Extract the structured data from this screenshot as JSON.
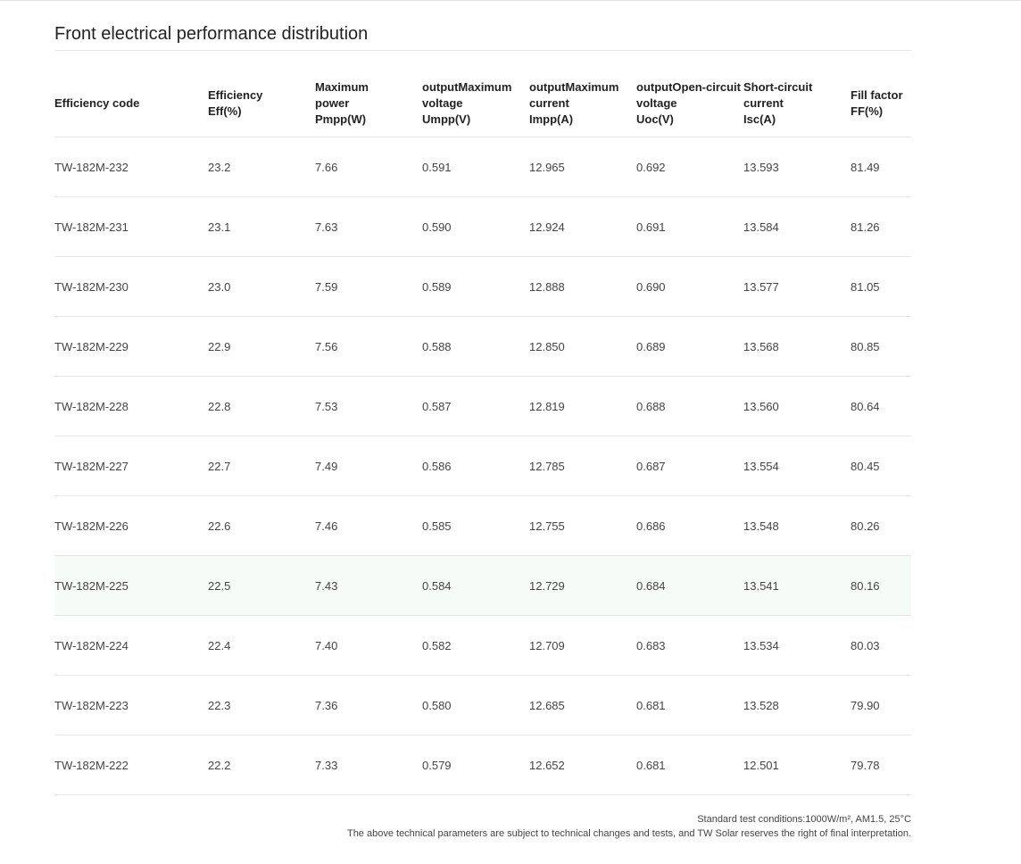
{
  "section_title": "Front electrical performance distribution",
  "table": {
    "headers": [
      [
        "Efficiency code"
      ],
      [
        "Efficiency",
        "Eff(%)"
      ],
      [
        "Maximum",
        "power",
        "Pmpp(W)"
      ],
      [
        "outputMaximum",
        "voltage",
        "Umpp(V)"
      ],
      [
        "outputMaximum",
        "current",
        "Impp(A)"
      ],
      [
        "outputOpen-circuit",
        "voltage",
        "Uoc(V)"
      ],
      [
        "Short-circuit",
        "current",
        "Isc(A)"
      ],
      [
        "Fill factor",
        "FF(%)"
      ]
    ],
    "rows": [
      [
        "TW-182M-232",
        "23.2",
        "7.66",
        "0.591",
        "12.965",
        "0.692",
        "13.593",
        "81.49"
      ],
      [
        "TW-182M-231",
        "23.1",
        "7.63",
        "0.590",
        "12.924",
        "0.691",
        "13.584",
        "81.26"
      ],
      [
        "TW-182M-230",
        "23.0",
        "7.59",
        "0.589",
        "12.888",
        "0.690",
        "13.577",
        "81.05"
      ],
      [
        "TW-182M-229",
        "22.9",
        "7.56",
        "0.588",
        "12.850",
        "0.689",
        "13.568",
        "80.85"
      ],
      [
        "TW-182M-228",
        "22.8",
        "7.53",
        "0.587",
        "12.819",
        "0.688",
        "13.560",
        "80.64"
      ],
      [
        "TW-182M-227",
        "22.7",
        "7.49",
        "0.586",
        "12.785",
        "0.687",
        "13.554",
        "80.45"
      ],
      [
        "TW-182M-226",
        "22.6",
        "7.46",
        "0.585",
        "12.755",
        "0.686",
        "13.548",
        "80.26"
      ],
      [
        "TW-182M-225",
        "22.5",
        "7.43",
        "0.584",
        "12.729",
        "0.684",
        "13.541",
        "80.16"
      ],
      [
        "TW-182M-224",
        "22.4",
        "7.40",
        "0.582",
        "12.709",
        "0.683",
        "13.534",
        "80.03"
      ],
      [
        "TW-182M-223",
        "22.3",
        "7.36",
        "0.580",
        "12.685",
        "0.681",
        "13.528",
        "79.90"
      ],
      [
        "TW-182M-222",
        "22.2",
        "7.33",
        "0.579",
        "12.652",
        "0.681",
        "12.501",
        "79.78"
      ]
    ],
    "highlighted_row_index": 7,
    "highlight_color": "#f7fbf7"
  },
  "footnote": {
    "line1": "Standard test conditions:1000W/m², AM1.5, 25°C",
    "line2": "The above technical parameters are subject to technical changes and tests, and TW Solar reserves the right of final interpretation."
  }
}
